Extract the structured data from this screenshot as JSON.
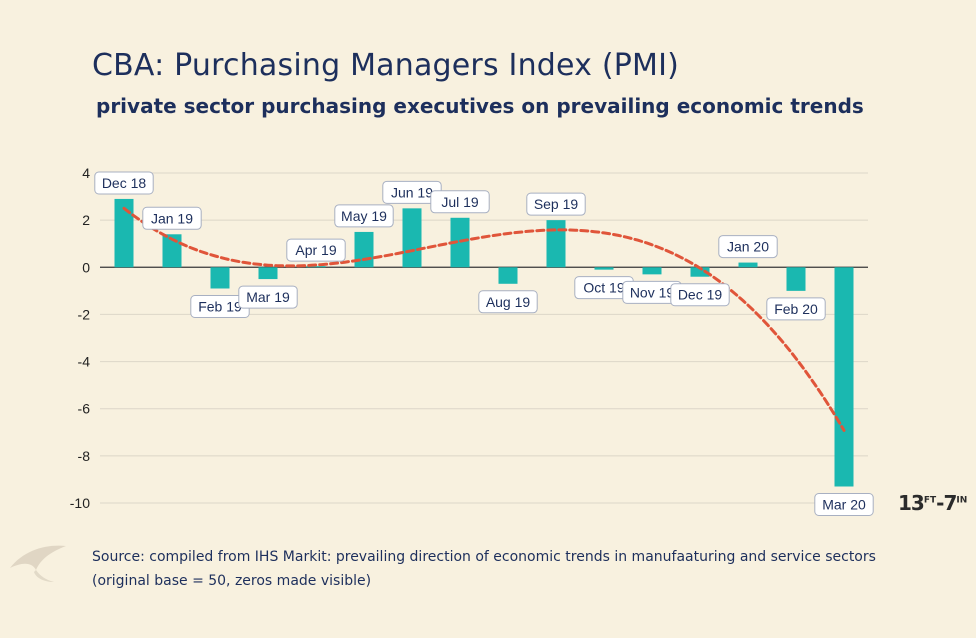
{
  "header": {
    "title": "CBA: Purchasing Managers Index (PMI)",
    "subtitle": "private sector purchasing  executives on prevailing economic trends"
  },
  "source": {
    "line1": "Source: compiled from IHS Markit: prevailing direction of economic trends in manufaaturing and service sectors",
    "line2": "(original base = 50, zeros made visible)"
  },
  "logo": {
    "main": "13",
    "sup1": "FT",
    "dash": "-7",
    "sup2": "IN"
  },
  "chart_data": {
    "type": "bar",
    "title": "CBA: Purchasing Managers Index (PMI)",
    "categories": [
      "Dec 18",
      "Jan 19",
      "Feb 19",
      "Mar 19",
      "Apr 19",
      "May 19",
      "Jun 19",
      "Jul 19",
      "Aug 19",
      "Sep 19",
      "Oct 19",
      "Nov 19",
      "Dec 19",
      "Jan 20",
      "Feb 20",
      "Mar 20"
    ],
    "values": [
      2.9,
      1.4,
      -0.9,
      -0.5,
      0.05,
      1.5,
      2.5,
      2.1,
      -0.7,
      2.0,
      -0.1,
      -0.3,
      -0.4,
      0.2,
      -1.0,
      -9.3
    ],
    "ylim": [
      -10,
      4
    ],
    "yticks": [
      4,
      2,
      0,
      -2,
      -4,
      -6,
      -8,
      -10
    ],
    "grid": true,
    "bar_color": "#1ab8b0",
    "trend_color": "#e0553a",
    "trendline": "polynomial"
  }
}
